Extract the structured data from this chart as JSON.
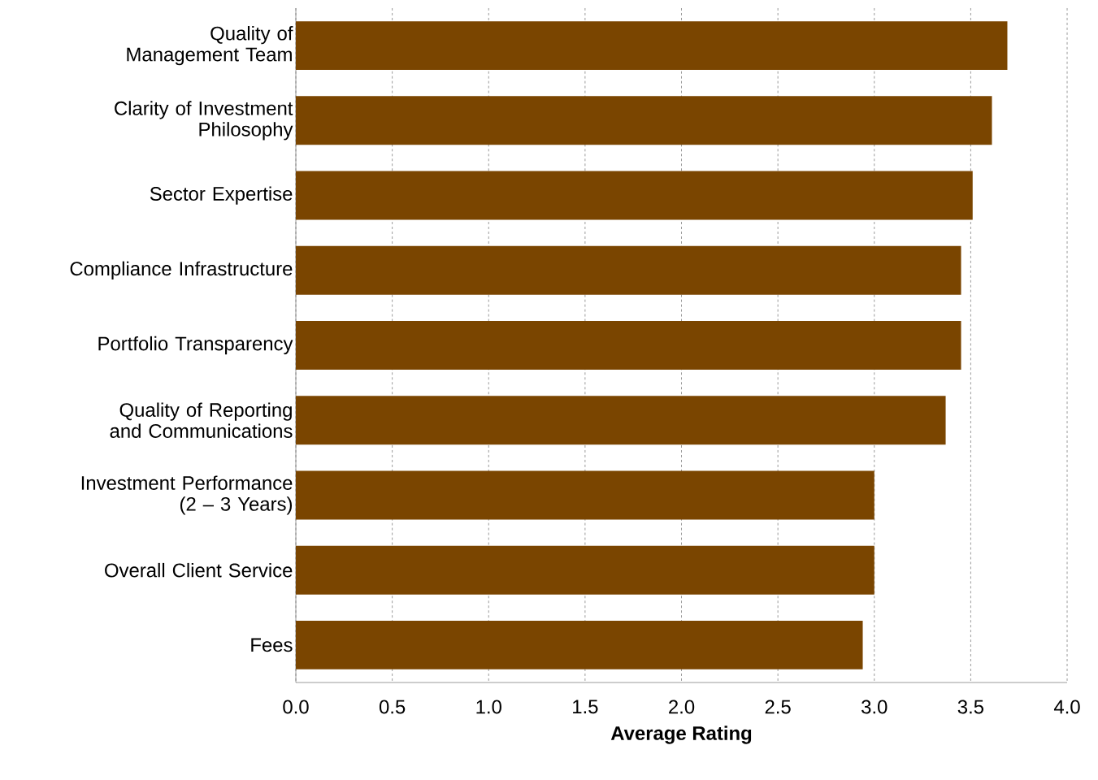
{
  "chart_data": {
    "type": "bar",
    "orientation": "horizontal",
    "xlabel": "Average Rating",
    "categories": [
      "Quality of Management Team",
      "Clarity of Investment Philosophy",
      "Sector Expertise",
      "Compliance Infrastructure",
      "Portfolio Transparency",
      "Quality of Reporting and Communications",
      "Investment Performance (2 – 3 Years)",
      "Overall Client Service",
      "Fees"
    ],
    "values": [
      3.69,
      3.61,
      3.51,
      3.45,
      3.45,
      3.37,
      3.0,
      3.0,
      2.94
    ],
    "color": "#7a4500",
    "xlim": [
      0,
      4
    ],
    "xticks": [
      {
        "value": 0,
        "label": "0.0"
      },
      {
        "value": 0.5,
        "label": "0.5"
      },
      {
        "value": 1,
        "label": "1.0"
      },
      {
        "value": 1.5,
        "label": "1.5"
      },
      {
        "value": 2,
        "label": "2.0"
      },
      {
        "value": 2.5,
        "label": "2.5"
      },
      {
        "value": 3,
        "label": "3.0"
      },
      {
        "value": 3.5,
        "label": "3.5"
      },
      {
        "value": 4,
        "label": "4.0"
      }
    ],
    "grid": "x"
  }
}
